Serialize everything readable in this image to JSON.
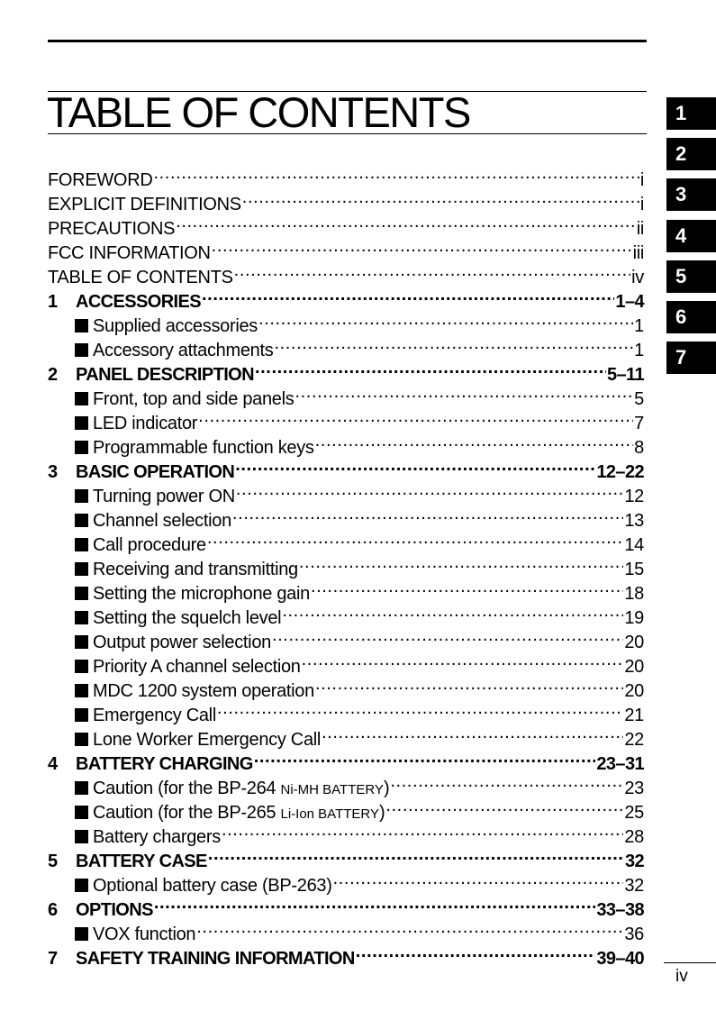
{
  "title": "TABLE OF CONTENTS",
  "front_matter": [
    {
      "title": "FOREWORD",
      "page": "i"
    },
    {
      "title": "EXPLICIT DEFINITIONS",
      "page": "i"
    },
    {
      "title": "PRECAUTIONS",
      "page": "ii"
    },
    {
      "title": "FCC INFORMATION",
      "page": "iii"
    },
    {
      "title": "TABLE OF CONTENTS",
      "page": "iv"
    }
  ],
  "chapters": [
    {
      "num": "1",
      "title": "ACCESSORIES",
      "pages": "1–4",
      "sections": [
        {
          "title": "Supplied accessories",
          "page": "1"
        },
        {
          "title": "Accessory attachments",
          "page": "1"
        }
      ]
    },
    {
      "num": "2",
      "title": "PANEL DESCRIPTION",
      "pages": "5–11",
      "sections": [
        {
          "title": "Front, top and side panels",
          "page": "5"
        },
        {
          "title": "LED indicator",
          "page": "7"
        },
        {
          "title": "Programmable function keys",
          "page": "8"
        }
      ]
    },
    {
      "num": "3",
      "title": "BASIC OPERATION",
      "pages": "12–22",
      "sections": [
        {
          "title": "Turning power ON",
          "page": "12"
        },
        {
          "title": "Channel selection",
          "page": "13"
        },
        {
          "title": "Call procedure",
          "page": "14"
        },
        {
          "title": "Receiving and transmitting",
          "page": "15"
        },
        {
          "title": "Setting the microphone gain",
          "page": "18"
        },
        {
          "title": "Setting the squelch level",
          "page": "19"
        },
        {
          "title": "Output power selection",
          "page": "20"
        },
        {
          "title": "Priority A channel selection",
          "page": "20"
        },
        {
          "title": "MDC 1200 system operation",
          "page": "20"
        },
        {
          "title": "Emergency Call",
          "page": "21"
        },
        {
          "title": "Lone Worker Emergency Call",
          "page": "22"
        }
      ]
    },
    {
      "num": "4",
      "title": "BATTERY CHARGING",
      "pages": "23–31",
      "sections": [
        {
          "title": "Caution (for the BP-264 ",
          "small": "Ni-MH BATTERY",
          "tail": ")",
          "page": "23"
        },
        {
          "title": "Caution (for the BP-265 ",
          "small": "Li-Ion BATTERY",
          "tail": ")",
          "page": "25"
        },
        {
          "title": "Battery chargers",
          "page": "28"
        }
      ]
    },
    {
      "num": "5",
      "title": "BATTERY CASE",
      "pages": "32",
      "sections": [
        {
          "title": "Optional battery case (BP-263)",
          "page": "32"
        }
      ]
    },
    {
      "num": "6",
      "title": "OPTIONS",
      "pages": "33–38",
      "sections": [
        {
          "title": "VOX function",
          "page": "36"
        }
      ]
    },
    {
      "num": "7",
      "title": "SAFETY TRAINING INFORMATION",
      "pages": "39–40",
      "sections": []
    }
  ],
  "side_tabs": [
    "1",
    "2",
    "3",
    "4",
    "5",
    "6",
    "7"
  ],
  "page_number": "iv"
}
